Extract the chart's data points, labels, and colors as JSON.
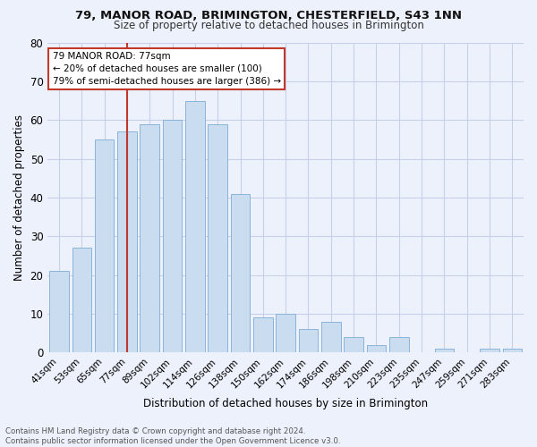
{
  "title1": "79, MANOR ROAD, BRIMINGTON, CHESTERFIELD, S43 1NN",
  "title2": "Size of property relative to detached houses in Brimington",
  "xlabel": "Distribution of detached houses by size in Brimington",
  "ylabel": "Number of detached properties",
  "categories": [
    "41sqm",
    "53sqm",
    "65sqm",
    "77sqm",
    "89sqm",
    "102sqm",
    "114sqm",
    "126sqm",
    "138sqm",
    "150sqm",
    "162sqm",
    "174sqm",
    "186sqm",
    "198sqm",
    "210sqm",
    "223sqm",
    "235sqm",
    "247sqm",
    "259sqm",
    "271sqm",
    "283sqm"
  ],
  "values": [
    21,
    27,
    55,
    57,
    59,
    60,
    65,
    59,
    41,
    9,
    10,
    6,
    8,
    4,
    2,
    4,
    0,
    1,
    0,
    1,
    1
  ],
  "bar_color": "#c9dcf0",
  "bar_edge_color": "#8ab4d8",
  "vline_idx": 3,
  "vline_color": "#c0392b",
  "ann_line1": "79 MANOR ROAD: 77sqm",
  "ann_line2": "← 20% of detached houses are smaller (100)",
  "ann_line3": "79% of semi-detached houses are larger (386) →",
  "annotation_box_color": "#c0392b",
  "ylim": [
    0,
    80
  ],
  "yticks": [
    0,
    10,
    20,
    30,
    40,
    50,
    60,
    70,
    80
  ],
  "footer_text": "Contains HM Land Registry data © Crown copyright and database right 2024.\nContains public sector information licensed under the Open Government Licence v3.0.",
  "bg_color": "#edf1fb",
  "grid_color": "#c8cfe8",
  "title1_fontsize": 9.5,
  "title2_fontsize": 8.5
}
